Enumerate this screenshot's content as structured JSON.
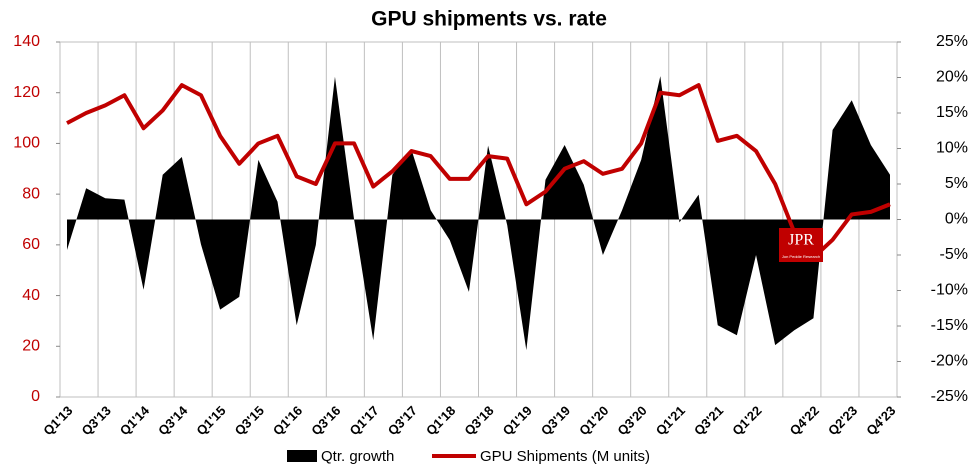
{
  "chart_data": {
    "type": "combo",
    "title": "GPU shipments vs. rate",
    "categories": [
      "Q1'13",
      null,
      "Q3'13",
      null,
      "Q1'14",
      null,
      "Q3'14",
      null,
      "Q1'15",
      null,
      "Q3'15",
      null,
      "Q1'16",
      null,
      "Q3'16",
      null,
      "Q1'17",
      null,
      "Q3'17",
      null,
      "Q1'18",
      null,
      "Q3'18",
      null,
      "Q1'19",
      null,
      "Q3'19",
      null,
      "Q1'20",
      null,
      "Q3'20",
      null,
      "Q1'21",
      null,
      "Q3'21",
      null,
      "Q1'22",
      null,
      null,
      "Q4'22",
      null,
      "Q2'23",
      null,
      "Q4'23"
    ],
    "series": [
      {
        "name": "Qtr. growth",
        "type": "area",
        "axis": "y2",
        "color": "#000000",
        "values": [
          -4.3,
          4.4,
          3.0,
          2.8,
          -9.9,
          6.3,
          8.8,
          -3.5,
          -12.7,
          -10.9,
          8.4,
          2.5,
          -14.9,
          -3.6,
          20.1,
          0,
          -17,
          6.3,
          9.8,
          1.3,
          -2.9,
          -10.2,
          10.4,
          -0.8,
          -18.4,
          5.6,
          10.5,
          4.9,
          -5,
          1.3,
          8.4,
          20.2,
          -0.4,
          3.5,
          -14.9,
          -16.3,
          -5,
          -17.7,
          -15.6,
          -13.9,
          12.6,
          16.8,
          10.5,
          6.3
        ]
      },
      {
        "name": "GPU Shipments (M units)",
        "type": "line",
        "axis": "y",
        "color": "#c00000",
        "values": [
          108,
          112,
          115,
          119,
          106,
          113,
          123,
          119,
          103,
          92,
          100,
          103,
          87,
          84,
          100,
          100,
          83,
          89,
          97,
          95,
          86,
          86,
          95,
          94,
          76,
          81,
          90,
          93,
          88,
          90,
          100,
          120,
          119,
          123,
          101,
          103,
          97,
          84,
          65,
          55,
          62,
          72,
          73,
          76
        ]
      }
    ],
    "ylim": [
      0,
      140
    ],
    "yticks": [
      0,
      20,
      40,
      60,
      80,
      100,
      120,
      140
    ],
    "y2lim": [
      -25,
      25
    ],
    "y2ticks": [
      {
        "value": -25,
        "label": "-25%"
      },
      {
        "value": -20,
        "label": "-20%"
      },
      {
        "value": -15,
        "label": "-15%"
      },
      {
        "value": -10,
        "label": "-10%"
      },
      {
        "value": -5,
        "label": "-5%"
      },
      {
        "value": 0,
        "label": "0%"
      },
      {
        "value": 5,
        "label": "5%"
      },
      {
        "value": 10,
        "label": "10%"
      },
      {
        "value": 15,
        "label": "15%"
      },
      {
        "value": 20,
        "label": "20%"
      },
      {
        "value": 25,
        "label": "25%"
      }
    ],
    "logo": {
      "text": "JPR",
      "subtext": "Jon Peddie Research"
    }
  }
}
